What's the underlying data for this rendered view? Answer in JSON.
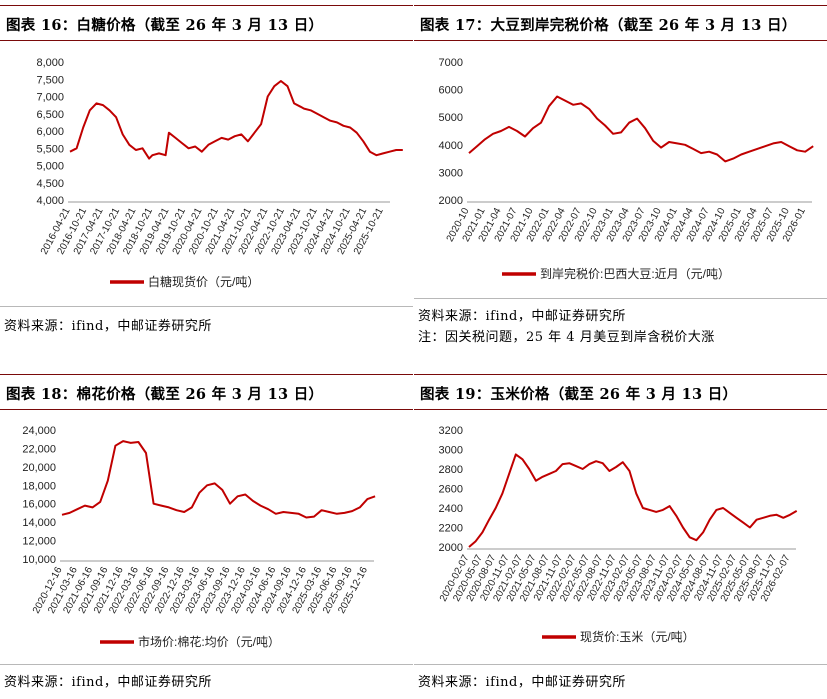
{
  "charts": [
    {
      "title": "图表 16：白糖价格（截至 26 年 3 月 13 日）",
      "source": "资料来源：ifind，中邮证券研究所",
      "note": ""
    },
    {
      "title": "图表 17：大豆到岸完税价格（截至 26 年 3 月 13 日）",
      "source": "资料来源：ifind，中邮证券研究所",
      "note": "注：因关税问题，25 年 4 月美豆到岸含税价大涨"
    },
    {
      "title": "图表 18：棉花价格（截至 26 年 3 月 13 日）",
      "source": "资料来源：ifind，中邮证券研究所",
      "note": ""
    },
    {
      "title": "图表 19：玉米价格（截至 26 年 3 月 13 日）",
      "source": "资料来源：ifind，中邮证券研究所",
      "note": ""
    }
  ],
  "chart_data": [
    {
      "type": "line",
      "color": "#c00000",
      "legend": "白糖现货价（元/吨）",
      "legend_position": "bottom",
      "grid": false,
      "ylim": [
        4000,
        8000
      ],
      "yticks": [
        "8,000",
        "7,500",
        "7,000",
        "6,500",
        "6,000",
        "5,500",
        "5,000",
        "4,500",
        "4,000"
      ],
      "xticks": [
        "2016-04-21",
        "2016-10-21",
        "2017-04-21",
        "2017-10-21",
        "2018-04-21",
        "2018-10-21",
        "2019-04-21",
        "2019-10-21",
        "2020-04-21",
        "2020-10-21",
        "2021-04-21",
        "2021-10-21",
        "2022-04-21",
        "2022-10-21",
        "2023-04-21",
        "2023-10-21",
        "2024-04-21",
        "2024-10-21",
        "2025-04-21",
        "2025-10-21"
      ],
      "x": [
        0,
        0.4,
        0.8,
        1.2,
        1.6,
        2,
        2.4,
        2.8,
        3.2,
        3.6,
        4,
        4.4,
        4.8,
        5,
        5.4,
        5.8,
        6,
        6.4,
        6.8,
        7.2,
        7.6,
        8,
        8.4,
        8.8,
        9.2,
        9.6,
        10,
        10.4,
        10.8,
        11.2,
        11.6,
        12,
        12.4,
        12.8,
        13.2,
        13.6,
        14,
        14.2,
        14.6,
        15,
        15.4,
        15.8,
        16.2,
        16.6,
        17,
        17.4,
        17.8,
        18.2,
        18.6,
        19,
        19.4,
        19.8,
        20.2
      ],
      "y": [
        5400,
        5500,
        6100,
        6600,
        6800,
        6750,
        6600,
        6400,
        5900,
        5600,
        5450,
        5500,
        5200,
        5300,
        5350,
        5300,
        5950,
        5800,
        5650,
        5500,
        5550,
        5400,
        5600,
        5700,
        5800,
        5750,
        5850,
        5900,
        5700,
        5950,
        6200,
        7000,
        7300,
        7450,
        7300,
        6800,
        6700,
        6650,
        6600,
        6500,
        6400,
        6300,
        6250,
        6150,
        6100,
        5950,
        5700,
        5400,
        5300,
        5350,
        5400,
        5450,
        5450
      ]
    },
    {
      "type": "line",
      "color": "#c00000",
      "legend": "到岸完税价:巴西大豆:近月（元/吨）",
      "legend_position": "bottom",
      "grid": false,
      "ylim": [
        2000,
        7000
      ],
      "yticks": [
        "7000",
        "6000",
        "5000",
        "4000",
        "3000",
        "2000"
      ],
      "xticks": [
        "2020-10",
        "2021-01",
        "2021-04",
        "2021-07",
        "2021-10",
        "2022-01",
        "2022-04",
        "2022-07",
        "2022-10",
        "2023-01",
        "2023-04",
        "2023-07",
        "2023-10",
        "2024-01",
        "2024-04",
        "2024-07",
        "2024-10",
        "2025-01",
        "2025-04",
        "2025-07",
        "2025-10",
        "2026-01"
      ],
      "x": [
        0,
        0.5,
        1,
        1.5,
        2,
        2.5,
        3,
        3.5,
        4,
        4.5,
        5,
        5.5,
        6,
        6.5,
        7,
        7.5,
        8,
        8.5,
        9,
        9.5,
        10,
        10.5,
        11,
        11.5,
        12,
        12.5,
        13,
        13.5,
        14,
        14.5,
        15,
        15.5,
        16,
        16.5,
        17,
        17.5,
        18,
        18.5,
        19,
        19.5,
        20,
        20.5,
        21,
        21.5
      ],
      "y": [
        3700,
        3950,
        4200,
        4400,
        4500,
        4650,
        4500,
        4300,
        4600,
        4800,
        5400,
        5750,
        5600,
        5450,
        5500,
        5300,
        4950,
        4700,
        4400,
        4450,
        4800,
        4950,
        4600,
        4150,
        3900,
        4100,
        4050,
        4000,
        3850,
        3700,
        3750,
        3650,
        3400,
        3500,
        3650,
        3750,
        3850,
        3950,
        4050,
        4100,
        3950,
        3800,
        3750,
        3950
      ]
    },
    {
      "type": "line",
      "color": "#c00000",
      "legend": "市场价:棉花:均价（元/吨）",
      "legend_position": "bottom",
      "grid": false,
      "ylim": [
        10000,
        24000
      ],
      "yticks": [
        "24,000",
        "22,000",
        "20,000",
        "18,000",
        "16,000",
        "14,000",
        "12,000",
        "10,000"
      ],
      "xticks": [
        "2020-12-16",
        "2021-03-16",
        "2021-06-16",
        "2021-09-16",
        "2021-12-16",
        "2022-03-16",
        "2022-06-16",
        "2022-09-16",
        "2022-12-16",
        "2023-03-16",
        "2023-06-16",
        "2023-09-16",
        "2023-12-16",
        "2024-03-16",
        "2024-06-16",
        "2024-09-16",
        "2024-12-16",
        "2025-03-16",
        "2025-06-16",
        "2025-09-16",
        "2025-12-16"
      ],
      "x": [
        0,
        0.5,
        1,
        1.5,
        2,
        2.5,
        3,
        3.5,
        4,
        4.5,
        5,
        5.5,
        6,
        6.5,
        7,
        7.5,
        8,
        8.5,
        9,
        9.5,
        10,
        10.5,
        11,
        11.5,
        12,
        12.5,
        13,
        13.5,
        14,
        14.5,
        15,
        15.5,
        16,
        16.5,
        17,
        17.5,
        18,
        18.5,
        19,
        19.5,
        20,
        20.5
      ],
      "y": [
        14800,
        15000,
        15400,
        15800,
        15600,
        16200,
        18500,
        22300,
        22800,
        22600,
        22700,
        21500,
        16000,
        15800,
        15600,
        15300,
        15100,
        15600,
        17200,
        18000,
        18200,
        17500,
        16000,
        16800,
        17000,
        16300,
        15800,
        15400,
        14900,
        15100,
        15000,
        14900,
        14500,
        14600,
        15300,
        15100,
        14900,
        15000,
        15200,
        15600,
        16500,
        16800
      ]
    },
    {
      "type": "line",
      "color": "#c00000",
      "legend": "现货价:玉米（元/吨）",
      "legend_position": "bottom",
      "grid": false,
      "ylim": [
        2000,
        3200
      ],
      "yticks": [
        "3200",
        "3000",
        "2800",
        "2600",
        "2400",
        "2200",
        "2000"
      ],
      "xticks": [
        "2020-02-07",
        "2020-05-07",
        "2020-08-07",
        "2020-11-07",
        "2021-02-07",
        "2021-05-07",
        "2021-08-07",
        "2021-11-07",
        "2022-02-07",
        "2022-05-07",
        "2022-08-07",
        "2022-11-07",
        "2023-02-07",
        "2023-05-07",
        "2023-08-07",
        "2023-11-07",
        "2024-02-07",
        "2024-05-07",
        "2024-08-07",
        "2024-11-07",
        "2025-02-07",
        "2025-05-07",
        "2025-08-07",
        "2025-11-07",
        "2026-02-07"
      ],
      "x": [
        0,
        0.5,
        1,
        1.5,
        2,
        2.5,
        3,
        3.5,
        4,
        4.5,
        5,
        5.5,
        6,
        6.5,
        7,
        7.5,
        8,
        8.5,
        9,
        9.5,
        10,
        10.5,
        11,
        11.5,
        12,
        12.5,
        13,
        13.5,
        14,
        14.5,
        15,
        15.5,
        16,
        16.5,
        17,
        17.5,
        18,
        18.5,
        19,
        19.5,
        20,
        20.5,
        21,
        21.5,
        22,
        22.5,
        23,
        23.5,
        24,
        24.5
      ],
      "y": [
        2000,
        2060,
        2150,
        2280,
        2400,
        2550,
        2750,
        2950,
        2900,
        2800,
        2680,
        2720,
        2750,
        2780,
        2850,
        2860,
        2830,
        2800,
        2850,
        2880,
        2860,
        2780,
        2820,
        2870,
        2780,
        2550,
        2400,
        2380,
        2360,
        2380,
        2420,
        2320,
        2200,
        2100,
        2070,
        2150,
        2280,
        2380,
        2400,
        2350,
        2300,
        2250,
        2200,
        2280,
        2300,
        2320,
        2330,
        2300,
        2330,
        2370
      ]
    }
  ]
}
